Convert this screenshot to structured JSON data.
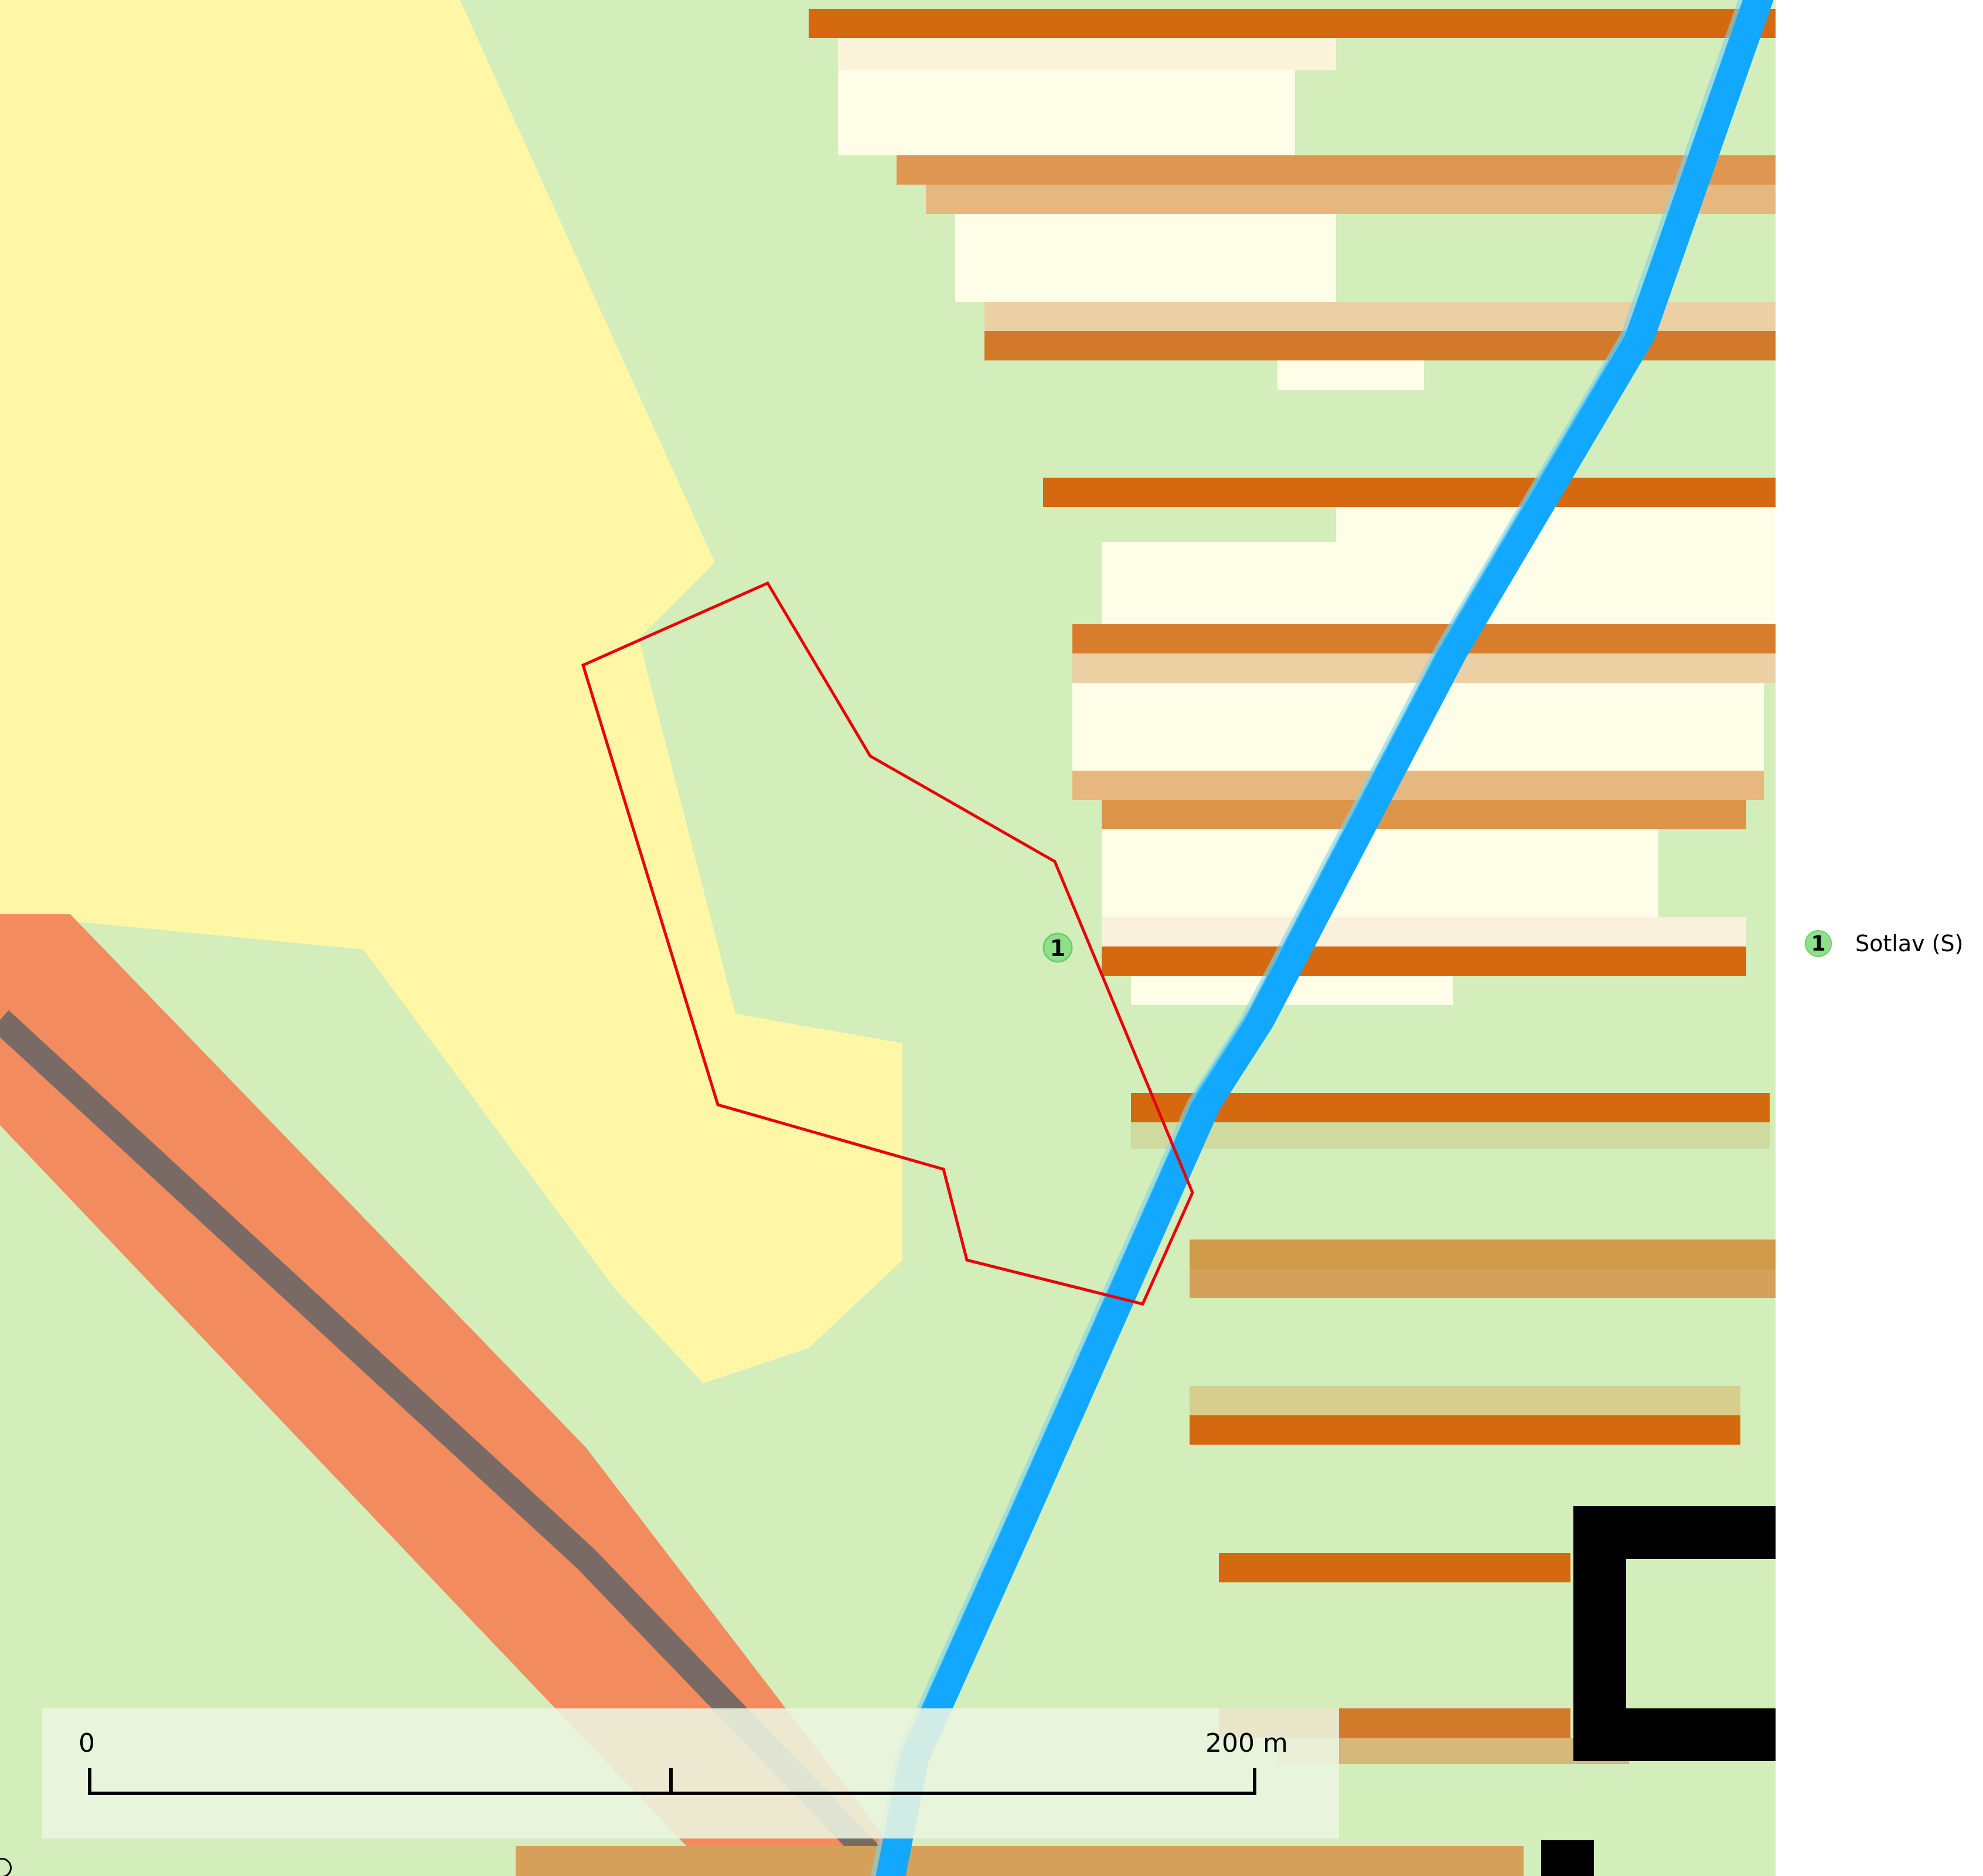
{
  "map": {
    "parcel_marker": {
      "number": "1"
    },
    "scale_bar": {
      "label_start": "0",
      "label_end": "200 m"
    },
    "colors": {
      "meadow_green": "#d3edbb",
      "field_yellow": "#fff7a6",
      "main_road_orange": "#f28c5f",
      "road_core_gray": "#7a6a66",
      "stream_blue": "#13a8ff",
      "parcel_outline_red": "#e8000b",
      "vineyard_orange": "#d4690f",
      "vineyard_cream": "#fdfde8",
      "building_black": "#000000",
      "marker_green": "#8ee08a"
    }
  },
  "legend": {
    "items": [
      {
        "number": "1",
        "label": "Sotlav (S)"
      }
    ]
  }
}
